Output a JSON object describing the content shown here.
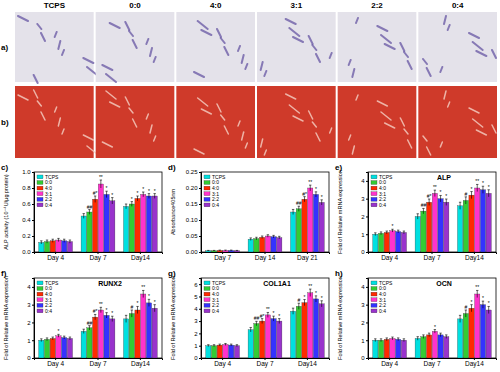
{
  "image_panels": {
    "rows": [
      "a)",
      "b)"
    ],
    "columns": [
      "TCPS",
      "0:0",
      "4:0",
      "3:1",
      "2:2",
      "0:4"
    ]
  },
  "chart_data": [
    {
      "type": "bar",
      "label": "c)",
      "y_label": "ALP activity (10⁻⁴U/μg protein)",
      "categories": [
        "Day 4",
        "Day 7",
        "Day14"
      ],
      "legend": "upper left",
      "ylim": [
        0,
        1.0
      ],
      "yticks": [
        {
          "value": 0,
          "label": "0.0"
        },
        {
          "value": 0.2,
          "label": "0.2"
        },
        {
          "value": 0.4,
          "label": "0.4"
        },
        {
          "value": 0.6,
          "label": "0.6"
        },
        {
          "value": 0.8,
          "label": "0.8"
        },
        {
          "value": 1.0,
          "label": "1.0"
        }
      ],
      "series": [
        {
          "name": "TCPS",
          "color": "#00e0e0",
          "values": [
            0.12,
            0.45,
            0.57
          ],
          "errors": [
            0.02,
            0.03,
            0.03
          ],
          "annotations": [
            null,
            null,
            null
          ]
        },
        {
          "name": "0:0",
          "color": "#33cc33",
          "values": [
            0.13,
            0.5,
            0.6
          ],
          "errors": [
            0.02,
            0.03,
            0.03
          ],
          "annotations": [
            null,
            "##",
            "*"
          ]
        },
        {
          "name": "4:0",
          "color": "#ff2a00",
          "values": [
            0.14,
            0.66,
            0.67
          ],
          "errors": [
            0.02,
            0.04,
            0.03
          ],
          "annotations": [
            null,
            "#*",
            "*"
          ]
        },
        {
          "name": "3:1",
          "color": "#ff33cc",
          "values": [
            0.15,
            0.85,
            0.72
          ],
          "errors": [
            0.02,
            0.05,
            0.03
          ],
          "annotations": [
            null,
            "**",
            "*"
          ]
        },
        {
          "name": "2:2",
          "color": "#3333ff",
          "values": [
            0.14,
            0.72,
            0.7
          ],
          "errors": [
            0.02,
            0.04,
            0.03
          ],
          "annotations": [
            null,
            "*",
            "*"
          ]
        },
        {
          "name": "0:4",
          "color": "#9933cc",
          "values": [
            0.13,
            0.64,
            0.7
          ],
          "errors": [
            0.02,
            0.04,
            0.03
          ],
          "annotations": [
            null,
            "*",
            "*"
          ]
        }
      ]
    },
    {
      "type": "bar",
      "label": "d)",
      "y_label": "Absorbance405nm",
      "categories": [
        "Day 7",
        "Day 14",
        "Day 21"
      ],
      "legend": "upper left",
      "ylim": [
        0,
        0.25
      ],
      "yticks": [
        {
          "value": 0,
          "label": "0.00"
        },
        {
          "value": 0.05,
          "label": "0.05"
        },
        {
          "value": 0.1,
          "label": "0.10"
        },
        {
          "value": 0.15,
          "label": "0.15"
        },
        {
          "value": 0.2,
          "label": "0.20"
        },
        {
          "value": 0.25,
          "label": "0.25"
        }
      ],
      "series": [
        {
          "name": "TCPS",
          "color": "#00e0e0",
          "values": [
            0.004,
            0.04,
            0.125
          ],
          "errors": [
            0.001,
            0.004,
            0.008
          ],
          "annotations": [
            null,
            null,
            null
          ]
        },
        {
          "name": "0:0",
          "color": "#33cc33",
          "values": [
            0.004,
            0.042,
            0.135
          ],
          "errors": [
            0.001,
            0.004,
            0.008
          ],
          "annotations": [
            null,
            null,
            "##"
          ]
        },
        {
          "name": "4:0",
          "color": "#ff2a00",
          "values": [
            0.005,
            0.046,
            0.165
          ],
          "errors": [
            0.001,
            0.004,
            0.008
          ],
          "annotations": [
            null,
            null,
            "#*"
          ]
        },
        {
          "name": "3:1",
          "color": "#ff33cc",
          "values": [
            0.005,
            0.05,
            0.2
          ],
          "errors": [
            0.001,
            0.004,
            0.009
          ],
          "annotations": [
            null,
            null,
            "**"
          ]
        },
        {
          "name": "2:2",
          "color": "#3333ff",
          "values": [
            0.005,
            0.048,
            0.18
          ],
          "errors": [
            0.001,
            0.004,
            0.008
          ],
          "annotations": [
            null,
            null,
            "*"
          ]
        },
        {
          "name": "0:4",
          "color": "#9933cc",
          "values": [
            0.004,
            0.045,
            0.155
          ],
          "errors": [
            0.001,
            0.004,
            0.008
          ],
          "annotations": [
            null,
            null,
            "*"
          ]
        }
      ]
    },
    {
      "type": "bar",
      "label": "e)",
      "title": "ALP",
      "y_label": "Fold of Relative mRNA expression",
      "categories": [
        "Day 4",
        "Day 7",
        "Day14"
      ],
      "legend": "upper left",
      "ylim": [
        0,
        4.5
      ],
      "yticks": [
        0,
        1,
        2,
        3,
        4
      ],
      "series": [
        {
          "name": "TCPS",
          "color": "#00e0e0",
          "values": [
            1.0,
            2.0,
            2.6
          ],
          "errors": [
            0.08,
            0.15,
            0.2
          ],
          "annotations": [
            null,
            null,
            null
          ]
        },
        {
          "name": "0:0",
          "color": "#33cc33",
          "values": [
            1.05,
            2.3,
            2.9
          ],
          "errors": [
            0.08,
            0.15,
            0.2
          ],
          "annotations": [
            null,
            "##",
            "#"
          ]
        },
        {
          "name": "4:0",
          "color": "#ff2a00",
          "values": [
            1.1,
            2.8,
            3.2
          ],
          "errors": [
            0.08,
            0.18,
            0.2
          ],
          "annotations": [
            null,
            "#*",
            "*"
          ]
        },
        {
          "name": "3:1",
          "color": "#ff33cc",
          "values": [
            1.2,
            3.3,
            3.6
          ],
          "errors": [
            0.08,
            0.18,
            0.2
          ],
          "annotations": [
            "*",
            "**",
            "**"
          ]
        },
        {
          "name": "2:2",
          "color": "#3333ff",
          "values": [
            1.15,
            3.0,
            3.5
          ],
          "errors": [
            0.08,
            0.18,
            0.2
          ],
          "annotations": [
            null,
            "*",
            "*"
          ]
        },
        {
          "name": "0:4",
          "color": "#9933cc",
          "values": [
            1.1,
            2.8,
            3.3
          ],
          "errors": [
            0.08,
            0.18,
            0.2
          ],
          "annotations": [
            null,
            "*",
            "*"
          ]
        }
      ]
    },
    {
      "type": "bar",
      "label": "f)",
      "title": "RUNX2",
      "y_label": "Fold of Relative mRNA expression",
      "categories": [
        "Day 4",
        "Day 7",
        "Day14"
      ],
      "legend": "upper left",
      "ylim": [
        0,
        4.5
      ],
      "yticks": [
        0,
        1,
        2,
        3,
        4
      ],
      "series": [
        {
          "name": "TCPS",
          "color": "#00e0e0",
          "values": [
            1.0,
            1.5,
            2.2
          ],
          "errors": [
            0.08,
            0.12,
            0.2
          ],
          "annotations": [
            null,
            null,
            null
          ]
        },
        {
          "name": "0:0",
          "color": "#33cc33",
          "values": [
            1.05,
            1.7,
            2.5
          ],
          "errors": [
            0.08,
            0.12,
            0.2
          ],
          "annotations": [
            null,
            "##",
            "#"
          ]
        },
        {
          "name": "4:0",
          "color": "#ff2a00",
          "values": [
            1.1,
            2.3,
            2.7
          ],
          "errors": [
            0.08,
            0.15,
            0.2
          ],
          "annotations": [
            null,
            "#*",
            "*"
          ]
        },
        {
          "name": "3:1",
          "color": "#ff33cc",
          "values": [
            1.25,
            2.7,
            3.6
          ],
          "errors": [
            0.08,
            0.15,
            0.2
          ],
          "annotations": [
            "*",
            "**",
            "**"
          ]
        },
        {
          "name": "2:2",
          "color": "#3333ff",
          "values": [
            1.15,
            2.4,
            3.1
          ],
          "errors": [
            0.08,
            0.15,
            0.2
          ],
          "annotations": [
            null,
            "*",
            "*"
          ]
        },
        {
          "name": "0:4",
          "color": "#9933cc",
          "values": [
            1.1,
            2.2,
            2.8
          ],
          "errors": [
            0.08,
            0.15,
            0.2
          ],
          "annotations": [
            null,
            "*",
            "*"
          ]
        }
      ]
    },
    {
      "type": "bar",
      "label": "g)",
      "title": "COL1A1",
      "y_label": "Fold of Relative mRNA expression",
      "categories": [
        "Day 4",
        "Day 7",
        "Day14"
      ],
      "legend": "upper left",
      "ylim": [
        0,
        6.5
      ],
      "yticks": [
        0,
        1,
        2,
        3,
        4,
        5,
        6
      ],
      "series": [
        {
          "name": "TCPS",
          "color": "#00e0e0",
          "values": [
            1.0,
            2.3,
            3.8
          ],
          "errors": [
            0.08,
            0.18,
            0.25
          ],
          "annotations": [
            null,
            null,
            null
          ]
        },
        {
          "name": "0:0",
          "color": "#33cc33",
          "values": [
            1.0,
            2.8,
            4.2
          ],
          "errors": [
            0.08,
            0.18,
            0.25
          ],
          "annotations": [
            null,
            "##",
            "#"
          ]
        },
        {
          "name": "4:0",
          "color": "#ff2a00",
          "values": [
            1.05,
            3.0,
            4.5
          ],
          "errors": [
            0.08,
            0.2,
            0.25
          ],
          "annotations": [
            null,
            "#*",
            "*"
          ]
        },
        {
          "name": "3:1",
          "color": "#ff33cc",
          "values": [
            1.1,
            3.5,
            5.3
          ],
          "errors": [
            0.08,
            0.2,
            0.3
          ],
          "annotations": [
            null,
            "**",
            "**"
          ]
        },
        {
          "name": "2:2",
          "color": "#3333ff",
          "values": [
            1.05,
            3.2,
            4.8
          ],
          "errors": [
            0.08,
            0.2,
            0.25
          ],
          "annotations": [
            null,
            "*",
            "*"
          ]
        },
        {
          "name": "0:4",
          "color": "#9933cc",
          "values": [
            1.0,
            3.0,
            4.4
          ],
          "errors": [
            0.08,
            0.2,
            0.25
          ],
          "annotations": [
            null,
            "*",
            "*"
          ]
        }
      ]
    },
    {
      "type": "bar",
      "label": "h)",
      "title": "OCN",
      "y_label": "Fold of Relative mRNA expression",
      "categories": [
        "Day 4",
        "Day 7",
        "Day14"
      ],
      "legend": "upper left",
      "ylim": [
        0,
        4.5
      ],
      "yticks": [
        0,
        1,
        2,
        3,
        4
      ],
      "series": [
        {
          "name": "TCPS",
          "color": "#00e0e0",
          "values": [
            1.0,
            1.1,
            2.2
          ],
          "errors": [
            0.08,
            0.1,
            0.2
          ],
          "annotations": [
            null,
            null,
            null
          ]
        },
        {
          "name": "0:0",
          "color": "#33cc33",
          "values": [
            1.0,
            1.2,
            2.5
          ],
          "errors": [
            0.08,
            0.1,
            0.2
          ],
          "annotations": [
            null,
            null,
            "#"
          ]
        },
        {
          "name": "4:0",
          "color": "#ff2a00",
          "values": [
            1.05,
            1.3,
            2.8
          ],
          "errors": [
            0.08,
            0.1,
            0.2
          ],
          "annotations": [
            null,
            null,
            "*"
          ]
        },
        {
          "name": "3:1",
          "color": "#ff33cc",
          "values": [
            1.1,
            1.5,
            3.6
          ],
          "errors": [
            0.08,
            0.1,
            0.2
          ],
          "annotations": [
            null,
            "*",
            "**"
          ]
        },
        {
          "name": "2:2",
          "color": "#3333ff",
          "values": [
            1.05,
            1.3,
            3.0
          ],
          "errors": [
            0.08,
            0.1,
            0.2
          ],
          "annotations": [
            null,
            null,
            "*"
          ]
        },
        {
          "name": "0:4",
          "color": "#9933cc",
          "values": [
            1.0,
            1.2,
            2.7
          ],
          "errors": [
            0.08,
            0.1,
            0.2
          ],
          "annotations": [
            null,
            null,
            "*"
          ]
        }
      ]
    }
  ]
}
